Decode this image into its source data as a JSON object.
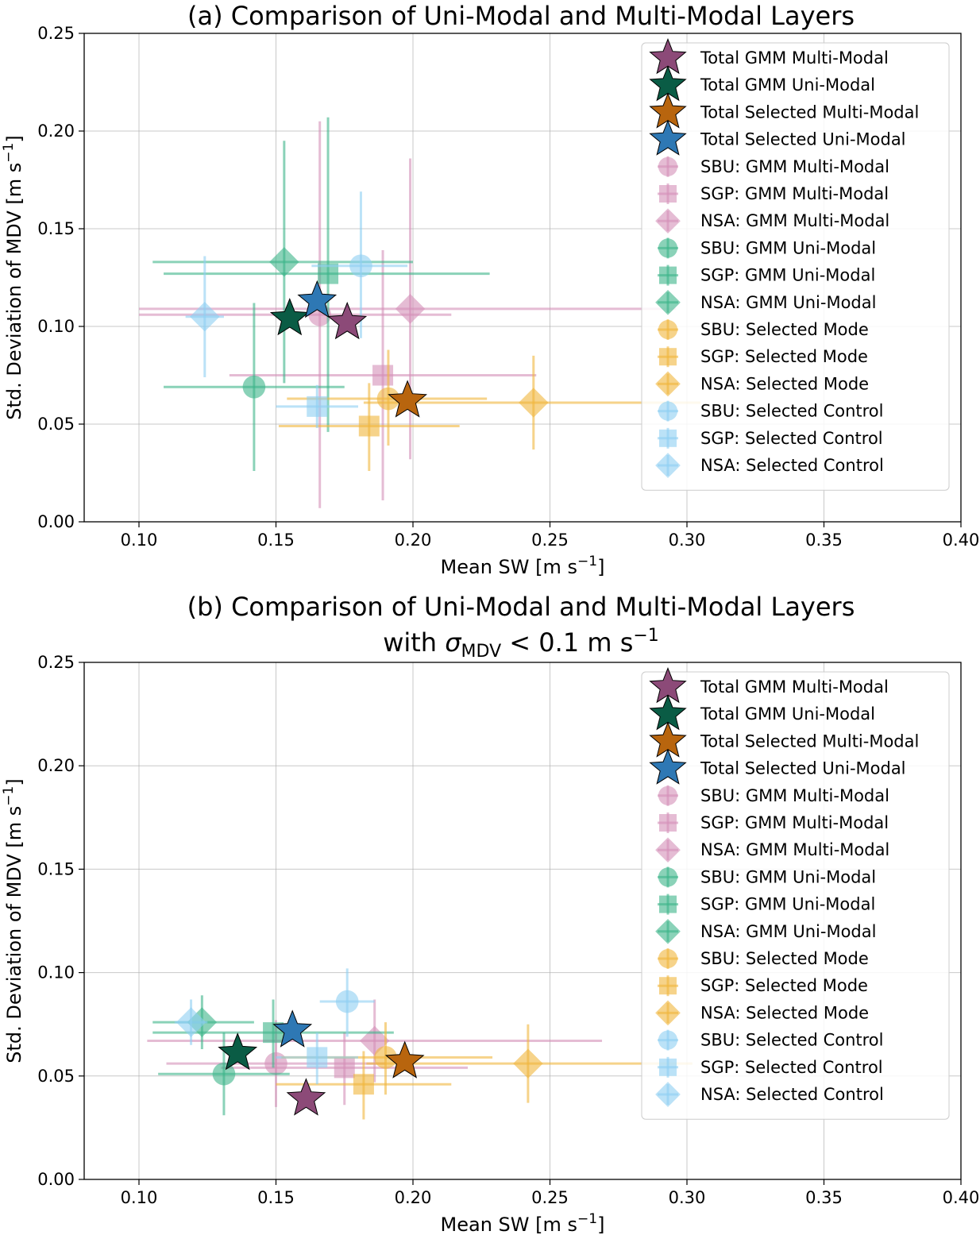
{
  "figure": {
    "panel_a_title": "(a) Comparison of Uni-Modal and Multi-Modal Layers",
    "panel_b_title_line1": "(b) Comparison of Uni-Modal and Multi-Modal Layers",
    "panel_b_title_line2_prefix": "with ",
    "panel_b_title_line2_sigma": "σ",
    "panel_b_title_line2_sub": "MDV",
    "panel_b_title_line2_suffix": " < 0.1 m s",
    "panel_b_title_line2_sup": "−1"
  },
  "axes": {
    "xlabel": "Mean SW [m s",
    "xlabel_sup": "−1",
    "xlabel_end": "]",
    "ylabel": "Std. Deviation of MDV [m s",
    "ylabel_sup": "−1",
    "ylabel_end": "]"
  },
  "colors": {
    "gmm_multi": "#d48fb8",
    "gmm_uni": "#3cb489",
    "selected_mode": "#f0b53c",
    "selected_control": "#8dcff2",
    "total_gmm_multi": "#8c4a78",
    "total_gmm_uni": "#0a5c45",
    "total_selected_multi": "#b8650e",
    "total_selected_uni": "#2e78b4"
  },
  "legend": [
    {
      "label": "Total GMM Multi-Modal",
      "marker": "star",
      "color": "#8c4a78",
      "alpha": 1
    },
    {
      "label": "Total GMM Uni-Modal",
      "marker": "star",
      "color": "#0a5c45",
      "alpha": 1
    },
    {
      "label": "Total Selected Multi-Modal",
      "marker": "star",
      "color": "#b8650e",
      "alpha": 1
    },
    {
      "label": "Total Selected Uni-Modal",
      "marker": "star",
      "color": "#2e78b4",
      "alpha": 1
    },
    {
      "label": "SBU: GMM Multi-Modal",
      "marker": "circle",
      "color": "#d48fb8",
      "alpha": 0.6
    },
    {
      "label": "SGP: GMM Multi-Modal",
      "marker": "square",
      "color": "#d48fb8",
      "alpha": 0.6
    },
    {
      "label": "NSA: GMM Multi-Modal",
      "marker": "diamond",
      "color": "#d48fb8",
      "alpha": 0.6
    },
    {
      "label": "SBU: GMM Uni-Modal",
      "marker": "circle",
      "color": "#3cb489",
      "alpha": 0.6
    },
    {
      "label": "SGP: GMM Uni-Modal",
      "marker": "square",
      "color": "#3cb489",
      "alpha": 0.6
    },
    {
      "label": "NSA: GMM Uni-Modal",
      "marker": "diamond",
      "color": "#3cb489",
      "alpha": 0.6
    },
    {
      "label": "SBU: Selected Mode",
      "marker": "circle",
      "color": "#f0b53c",
      "alpha": 0.6
    },
    {
      "label": "SGP: Selected Mode",
      "marker": "square",
      "color": "#f0b53c",
      "alpha": 0.6
    },
    {
      "label": "NSA: Selected Mode",
      "marker": "diamond",
      "color": "#f0b53c",
      "alpha": 0.6
    },
    {
      "label": "SBU: Selected Control",
      "marker": "circle",
      "color": "#8dcff2",
      "alpha": 0.6
    },
    {
      "label": "SGP: Selected Control",
      "marker": "square",
      "color": "#8dcff2",
      "alpha": 0.6
    },
    {
      "label": "NSA: Selected Control",
      "marker": "diamond",
      "color": "#8dcff2",
      "alpha": 0.6
    }
  ],
  "chart_data": [
    {
      "type": "scatter",
      "title": "(a) Comparison of Uni-Modal and Multi-Modal Layers",
      "xlabel": "Mean SW [m s−1]",
      "ylabel": "Std. Deviation of MDV [m s−1]",
      "xlim": [
        0.08,
        0.4
      ],
      "ylim": [
        0.0,
        0.25
      ],
      "xticks": [
        "0.10",
        "0.15",
        "0.20",
        "0.25",
        "0.30",
        "0.35",
        "0.40"
      ],
      "yticks": [
        "0.00",
        "0.05",
        "0.10",
        "0.15",
        "0.20",
        "0.25"
      ],
      "grid": true,
      "legend_position": "upper-right",
      "series": [
        {
          "name": "SBU: GMM Multi-Modal",
          "marker": "circle",
          "color": "#d48fb8",
          "x": 0.166,
          "y": 0.106,
          "xerr": [
            0.1,
            0.214
          ],
          "yerr": [
            0.007,
            0.205
          ]
        },
        {
          "name": "SGP: GMM Multi-Modal",
          "marker": "square",
          "color": "#d48fb8",
          "x": 0.189,
          "y": 0.075,
          "xerr": [
            0.133,
            0.245
          ],
          "yerr": [
            0.011,
            0.139
          ]
        },
        {
          "name": "NSA: GMM Multi-Modal",
          "marker": "diamond",
          "color": "#d48fb8",
          "x": 0.199,
          "y": 0.109,
          "xerr": [
            0.1,
            0.296
          ],
          "yerr": [
            0.032,
            0.186
          ]
        },
        {
          "name": "SBU: GMM Uni-Modal",
          "marker": "circle",
          "color": "#3cb489",
          "x": 0.142,
          "y": 0.069,
          "xerr": [
            0.109,
            0.175
          ],
          "yerr": [
            0.026,
            0.112
          ]
        },
        {
          "name": "SGP: GMM Uni-Modal",
          "marker": "square",
          "color": "#3cb489",
          "x": 0.169,
          "y": 0.127,
          "xerr": [
            0.109,
            0.228
          ],
          "yerr": [
            0.046,
            0.207
          ]
        },
        {
          "name": "NSA: GMM Uni-Modal",
          "marker": "diamond",
          "color": "#3cb489",
          "x": 0.153,
          "y": 0.133,
          "xerr": [
            0.105,
            0.2
          ],
          "yerr": [
            0.071,
            0.195
          ]
        },
        {
          "name": "SBU: Selected Mode",
          "marker": "circle",
          "color": "#f0b53c",
          "x": 0.191,
          "y": 0.063,
          "xerr": [
            0.154,
            0.227
          ],
          "yerr": [
            0.039,
            0.088
          ]
        },
        {
          "name": "SGP: Selected Mode",
          "marker": "square",
          "color": "#f0b53c",
          "x": 0.184,
          "y": 0.049,
          "xerr": [
            0.151,
            0.217
          ],
          "yerr": [
            0.026,
            0.071
          ]
        },
        {
          "name": "NSA: Selected Mode",
          "marker": "diamond",
          "color": "#f0b53c",
          "x": 0.244,
          "y": 0.061,
          "xerr": [
            0.182,
            0.305
          ],
          "yerr": [
            0.037,
            0.085
          ]
        },
        {
          "name": "SBU: Selected Control",
          "marker": "circle",
          "color": "#8dcff2",
          "x": 0.181,
          "y": 0.131,
          "xerr": [
            0.163,
            0.198
          ],
          "yerr": [
            0.094,
            0.169
          ]
        },
        {
          "name": "SGP: Selected Control",
          "marker": "square",
          "color": "#8dcff2",
          "x": 0.165,
          "y": 0.059,
          "xerr": [
            0.15,
            0.18
          ],
          "yerr": [
            0.048,
            0.07
          ]
        },
        {
          "name": "NSA: Selected Control",
          "marker": "diamond",
          "color": "#8dcff2",
          "x": 0.124,
          "y": 0.105,
          "xerr": [
            0.117,
            0.131
          ],
          "yerr": [
            0.074,
            0.136
          ]
        },
        {
          "name": "Total GMM Multi-Modal",
          "marker": "star",
          "color": "#8c4a78",
          "x": 0.176,
          "y": 0.102
        },
        {
          "name": "Total GMM Uni-Modal",
          "marker": "star",
          "color": "#0a5c45",
          "x": 0.155,
          "y": 0.104
        },
        {
          "name": "Total Selected Multi-Modal",
          "marker": "star",
          "color": "#b8650e",
          "x": 0.198,
          "y": 0.062
        },
        {
          "name": "Total Selected Uni-Modal",
          "marker": "star",
          "color": "#2e78b4",
          "x": 0.165,
          "y": 0.113
        }
      ]
    },
    {
      "type": "scatter",
      "title": "(b) Comparison of Uni-Modal and Multi-Modal Layers with σMDV < 0.1 m s−1",
      "xlabel": "Mean SW [m s−1]",
      "ylabel": "Std. Deviation of MDV [m s−1]",
      "xlim": [
        0.08,
        0.4
      ],
      "ylim": [
        0.0,
        0.25
      ],
      "xticks": [
        "0.10",
        "0.15",
        "0.20",
        "0.25",
        "0.30",
        "0.35",
        "0.40"
      ],
      "yticks": [
        "0.00",
        "0.05",
        "0.10",
        "0.15",
        "0.20",
        "0.25"
      ],
      "grid": true,
      "legend_position": "upper-right",
      "series": [
        {
          "name": "SBU: GMM Multi-Modal",
          "marker": "circle",
          "color": "#d48fb8",
          "x": 0.15,
          "y": 0.056,
          "xerr": [
            0.11,
            0.19
          ],
          "yerr": [
            0.035,
            0.077
          ]
        },
        {
          "name": "SGP: GMM Multi-Modal",
          "marker": "square",
          "color": "#d48fb8",
          "x": 0.175,
          "y": 0.054,
          "xerr": [
            0.13,
            0.22
          ],
          "yerr": [
            0.036,
            0.071
          ]
        },
        {
          "name": "NSA: GMM Multi-Modal",
          "marker": "diamond",
          "color": "#d48fb8",
          "x": 0.186,
          "y": 0.067,
          "xerr": [
            0.103,
            0.269
          ],
          "yerr": [
            0.047,
            0.087
          ]
        },
        {
          "name": "SBU: GMM Uni-Modal",
          "marker": "circle",
          "color": "#3cb489",
          "x": 0.131,
          "y": 0.051,
          "xerr": [
            0.107,
            0.155
          ],
          "yerr": [
            0.031,
            0.071
          ]
        },
        {
          "name": "SGP: GMM Uni-Modal",
          "marker": "square",
          "color": "#3cb489",
          "x": 0.149,
          "y": 0.071,
          "xerr": [
            0.105,
            0.193
          ],
          "yerr": [
            0.054,
            0.087
          ]
        },
        {
          "name": "NSA: GMM Uni-Modal",
          "marker": "diamond",
          "color": "#3cb489",
          "x": 0.123,
          "y": 0.076,
          "xerr": [
            0.105,
            0.142
          ],
          "yerr": [
            0.063,
            0.089
          ]
        },
        {
          "name": "SBU: Selected Mode",
          "marker": "circle",
          "color": "#f0b53c",
          "x": 0.19,
          "y": 0.059,
          "xerr": [
            0.152,
            0.229
          ],
          "yerr": [
            0.041,
            0.076
          ]
        },
        {
          "name": "SGP: Selected Mode",
          "marker": "square",
          "color": "#f0b53c",
          "x": 0.182,
          "y": 0.046,
          "xerr": [
            0.15,
            0.214
          ],
          "yerr": [
            0.029,
            0.062
          ]
        },
        {
          "name": "NSA: Selected Mode",
          "marker": "diamond",
          "color": "#f0b53c",
          "x": 0.242,
          "y": 0.056,
          "xerr": [
            0.183,
            0.302
          ],
          "yerr": [
            0.037,
            0.075
          ]
        },
        {
          "name": "SBU: Selected Control",
          "marker": "circle",
          "color": "#8dcff2",
          "x": 0.176,
          "y": 0.086,
          "xerr": [
            0.166,
            0.186
          ],
          "yerr": [
            0.069,
            0.102
          ]
        },
        {
          "name": "SGP: Selected Control",
          "marker": "square",
          "color": "#8dcff2",
          "x": 0.165,
          "y": 0.059,
          "xerr": [
            0.15,
            0.18
          ],
          "yerr": [
            0.046,
            0.071
          ]
        },
        {
          "name": "NSA: Selected Control",
          "marker": "diamond",
          "color": "#8dcff2",
          "x": 0.119,
          "y": 0.076,
          "xerr": [
            0.113,
            0.125
          ],
          "yerr": [
            0.065,
            0.087
          ]
        },
        {
          "name": "Total GMM Multi-Modal",
          "marker": "star",
          "color": "#8c4a78",
          "x": 0.161,
          "y": 0.039
        },
        {
          "name": "Total GMM Uni-Modal",
          "marker": "star",
          "color": "#0a5c45",
          "x": 0.136,
          "y": 0.061
        },
        {
          "name": "Total Selected Multi-Modal",
          "marker": "star",
          "color": "#b8650e",
          "x": 0.197,
          "y": 0.057
        },
        {
          "name": "Total Selected Uni-Modal",
          "marker": "star",
          "color": "#2e78b4",
          "x": 0.156,
          "y": 0.072
        }
      ]
    }
  ]
}
